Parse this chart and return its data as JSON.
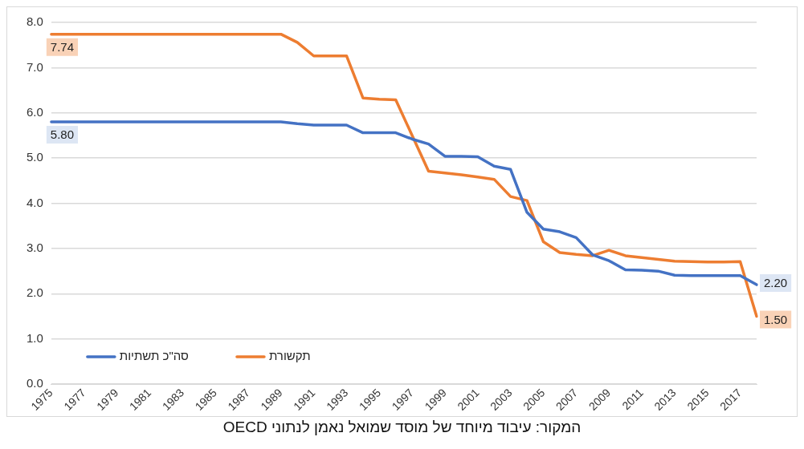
{
  "chart_data": {
    "type": "line",
    "categories": [
      "1975",
      null,
      "1977",
      null,
      "1979",
      null,
      "1981",
      null,
      "1983",
      null,
      "1985",
      null,
      "1987",
      null,
      "1989",
      null,
      "1991",
      null,
      "1993",
      null,
      "1995",
      null,
      "1997",
      null,
      "1999",
      null,
      "2001",
      null,
      "2003",
      null,
      "2005",
      null,
      "2007",
      null,
      "2009",
      null,
      "2011",
      null,
      "2013",
      null,
      "2015",
      null,
      "2017",
      null
    ],
    "series": [
      {
        "name": "סה\"כ תשתיות",
        "color": "#4472c4",
        "values": [
          5.8,
          5.8,
          5.8,
          5.8,
          5.8,
          5.8,
          5.8,
          5.8,
          5.8,
          5.8,
          5.8,
          5.8,
          5.8,
          5.8,
          5.8,
          5.76,
          5.73,
          5.73,
          5.73,
          5.56,
          5.56,
          5.56,
          5.42,
          5.31,
          5.04,
          5.04,
          5.03,
          4.82,
          4.75,
          3.8,
          3.43,
          3.37,
          3.24,
          2.86,
          2.73,
          2.53,
          2.52,
          2.5,
          2.41,
          2.4,
          2.4,
          2.4,
          2.4,
          2.2
        ],
        "value_labels": [
          "5.80",
          null,
          null,
          null,
          null,
          null,
          null,
          null,
          null,
          null,
          null,
          null,
          null,
          null,
          null,
          null,
          null,
          null,
          null,
          null,
          null,
          null,
          null,
          null,
          null,
          null,
          null,
          null,
          null,
          null,
          null,
          null,
          null,
          null,
          null,
          null,
          null,
          null,
          null,
          null,
          null,
          null,
          null,
          "2.20"
        ]
      },
      {
        "name": "תקשורת",
        "color": "#ed7d31",
        "values": [
          7.74,
          7.74,
          7.74,
          7.74,
          7.74,
          7.74,
          7.74,
          7.74,
          7.74,
          7.74,
          7.74,
          7.74,
          7.74,
          7.74,
          7.74,
          7.56,
          7.26,
          7.26,
          7.26,
          6.33,
          6.3,
          6.29,
          5.5,
          4.71,
          4.67,
          4.63,
          4.58,
          4.53,
          4.15,
          4.06,
          3.15,
          2.91,
          2.87,
          2.84,
          2.96,
          2.84,
          2.8,
          2.76,
          2.72,
          2.71,
          2.7,
          2.7,
          2.71,
          1.5
        ],
        "value_labels": [
          "7.74",
          null,
          null,
          null,
          null,
          null,
          null,
          null,
          null,
          null,
          null,
          null,
          null,
          null,
          null,
          null,
          null,
          null,
          null,
          null,
          null,
          null,
          null,
          null,
          null,
          null,
          null,
          null,
          null,
          null,
          null,
          null,
          null,
          null,
          null,
          null,
          null,
          null,
          null,
          null,
          null,
          null,
          null,
          "1.50"
        ]
      }
    ],
    "ylim": [
      0,
      8
    ],
    "yticks": [
      {
        "value": 0,
        "label": "0.0"
      },
      {
        "value": 1,
        "label": "1.0"
      },
      {
        "value": 2,
        "label": "2.0"
      },
      {
        "value": 3,
        "label": "3.0"
      },
      {
        "value": 4,
        "label": "4.0"
      },
      {
        "value": 5,
        "label": "5.0"
      },
      {
        "value": 6,
        "label": "6.0"
      },
      {
        "value": 7,
        "label": "7.0"
      },
      {
        "value": 8,
        "label": "8.0"
      }
    ],
    "grid": "y",
    "legend": "bottom left",
    "marker": "none",
    "line_style": "solid",
    "annotations": [
      "המקור: עיבוד מיוחד של מוסד שמואל נאמן לנתוני OECD"
    ]
  }
}
